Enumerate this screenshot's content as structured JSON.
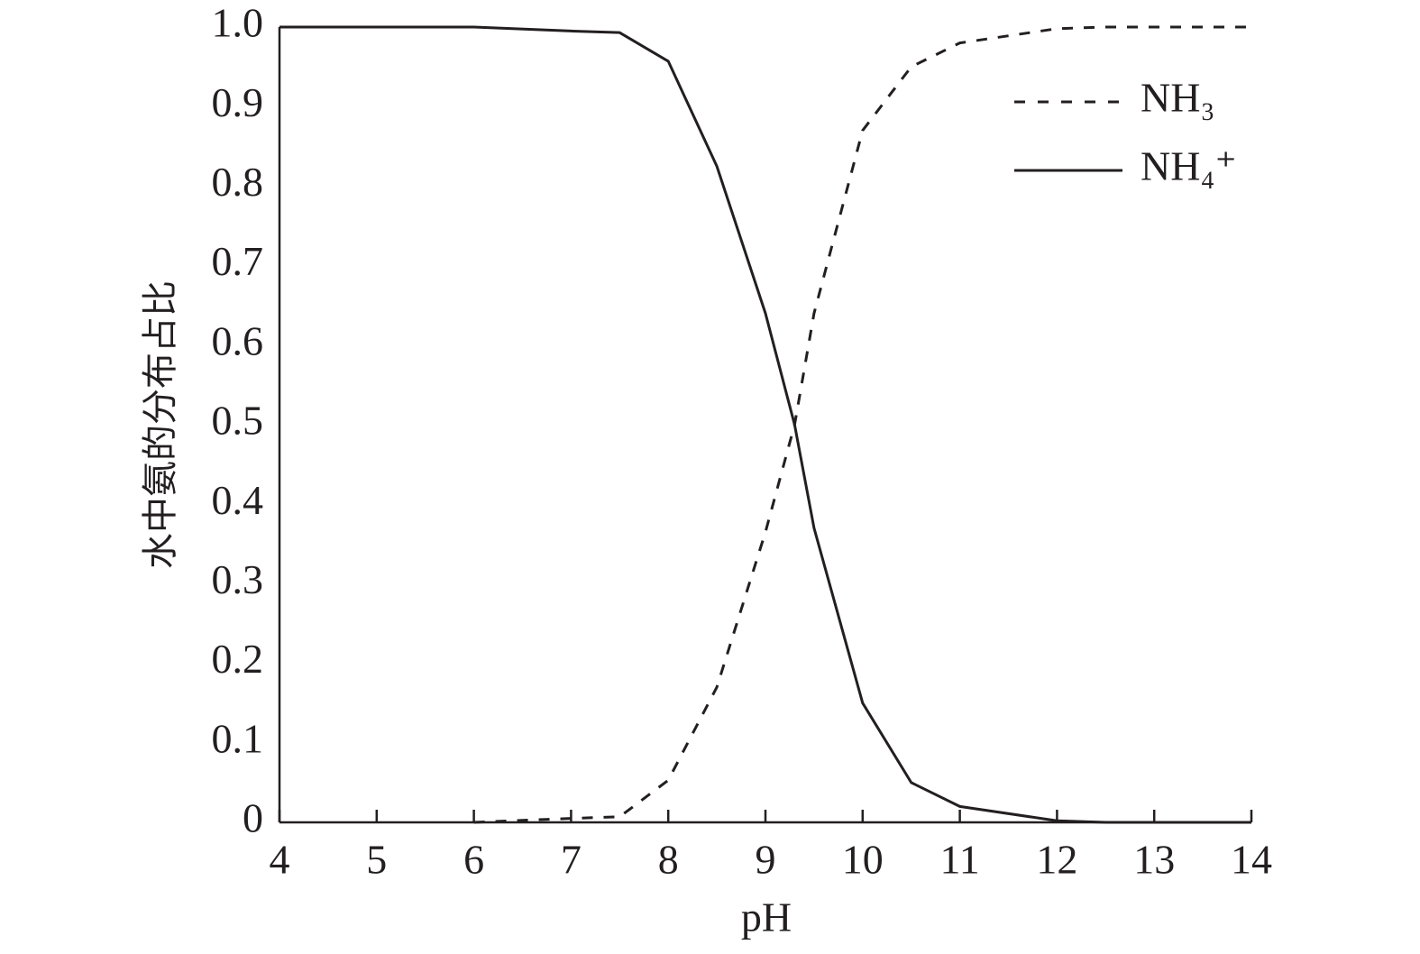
{
  "chart_data": {
    "type": "line",
    "x_label": "pH",
    "y_label": "水中氨的分布占比",
    "x": [
      4,
      5,
      6,
      7,
      7.5,
      8,
      8.5,
      9,
      9.3,
      9.5,
      10,
      10.5,
      11,
      12,
      12.5,
      13,
      14
    ],
    "series": [
      {
        "name": "NH₃",
        "color": "#231f20",
        "dash": true,
        "values": [
          null,
          null,
          0,
          0.005,
          0.007,
          0.053,
          0.17,
          0.365,
          0.5,
          0.64,
          0.87,
          0.95,
          0.98,
          0.998,
          1,
          1,
          1
        ]
      },
      {
        "name": "NH₄⁺",
        "color": "#231f20",
        "dash": false,
        "values": [
          1,
          1,
          1,
          0.995,
          0.993,
          0.957,
          0.825,
          0.64,
          0.5,
          0.37,
          0.15,
          0.05,
          0.02,
          0.002,
          0,
          0,
          0
        ]
      }
    ],
    "xlim": [
      4,
      14
    ],
    "xticks": [
      4,
      5,
      6,
      7,
      8,
      9,
      10,
      11,
      12,
      13,
      14
    ],
    "ylim": [
      0,
      1
    ],
    "yticks": [
      0,
      0.1,
      0.2,
      0.3,
      0.4,
      0.5,
      0.6,
      0.7,
      0.8,
      0.9,
      {
        "value": 1,
        "label": "1.0"
      }
    ],
    "legend": "upper right",
    "grid": false
  }
}
